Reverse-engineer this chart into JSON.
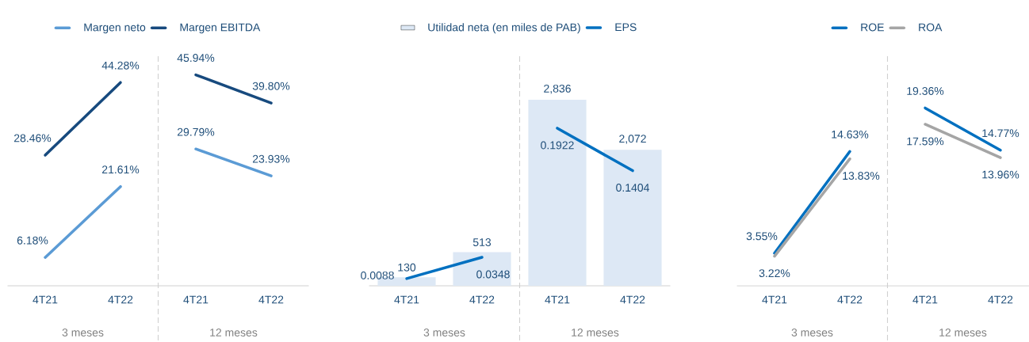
{
  "chart_data": [
    {
      "type": "line",
      "categories": [
        "4T21",
        "4T22",
        "4T21",
        "4T22"
      ],
      "ylim": [
        0,
        50
      ],
      "tick_labels": "x",
      "legend": "top",
      "series": [
        {
          "name": "Margen neto",
          "color": "#5b9bd5",
          "values": [
            6.18,
            21.61,
            null,
            null
          ],
          "value_labels": [
            "6.18%",
            "21.61%",
            null,
            null
          ]
        },
        {
          "color": "#5b9bd5",
          "values": [
            null,
            null,
            29.79,
            23.93
          ],
          "value_labels": [
            null,
            null,
            "29.79%",
            "23.93%"
          ]
        },
        {
          "name": "Margen EBITDA",
          "color": "#174a7e",
          "values": [
            28.46,
            44.28,
            null,
            null
          ],
          "value_labels": [
            "28.46%",
            "44.28%",
            null,
            null
          ]
        },
        {
          "color": "#174a7e",
          "values": [
            null,
            null,
            45.94,
            39.8
          ],
          "value_labels": [
            null,
            null,
            "45.94%",
            "39.80%"
          ]
        }
      ],
      "annotations": [
        "3 meses",
        "12 meses"
      ]
    },
    {
      "type": "bar",
      "categories": [
        "4T21",
        "4T22",
        "4T21",
        "4T22"
      ],
      "ylim": [
        0,
        3500
      ],
      "y2lim": [
        0,
        0.28
      ],
      "tick_labels": "x",
      "legend": "top",
      "series": [
        {
          "name": "Utilidad neta (en miles de PAB)",
          "type": "bar",
          "color": "#dde8f5",
          "values": [
            130,
            513,
            2836,
            2072
          ],
          "value_labels": [
            "130",
            "513",
            "2,836",
            "2,072"
          ]
        },
        {
          "name": "EPS",
          "type": "line",
          "axis": "y2",
          "color": "#0070c0",
          "values": [
            0.0088,
            0.0348,
            null,
            null
          ],
          "value_labels": [
            "0.0088",
            "0.0348",
            null,
            null
          ]
        },
        {
          "type": "line",
          "axis": "y2",
          "color": "#0070c0",
          "values": [
            null,
            null,
            0.1922,
            0.1404
          ],
          "value_labels": [
            null,
            null,
            "0.1922",
            "0.1404"
          ]
        }
      ],
      "annotations": [
        "3 meses",
        "12 meses"
      ]
    },
    {
      "type": "line",
      "categories": [
        "4T21",
        "4T22",
        "4T21",
        "4T22"
      ],
      "ylim": [
        0,
        25
      ],
      "tick_labels": "x",
      "legend": "top",
      "series": [
        {
          "name": "ROE",
          "color": "#0070c0",
          "values": [
            3.55,
            14.63,
            null,
            null
          ],
          "value_labels": [
            "3.55%",
            "14.63%",
            null,
            null
          ]
        },
        {
          "color": "#0070c0",
          "values": [
            null,
            null,
            19.36,
            14.77
          ],
          "value_labels": [
            null,
            null,
            "19.36%",
            "14.77%"
          ]
        },
        {
          "name": "ROA",
          "color": "#a5a5a5",
          "values": [
            3.22,
            13.83,
            null,
            null
          ],
          "value_labels": [
            "3.22%",
            "13.83%",
            null,
            null
          ]
        },
        {
          "color": "#a5a5a5",
          "values": [
            null,
            null,
            17.59,
            13.96
          ],
          "value_labels": [
            null,
            null,
            "17.59%",
            "13.96%"
          ]
        }
      ],
      "annotations": [
        "3 meses",
        "12 meses"
      ]
    }
  ]
}
